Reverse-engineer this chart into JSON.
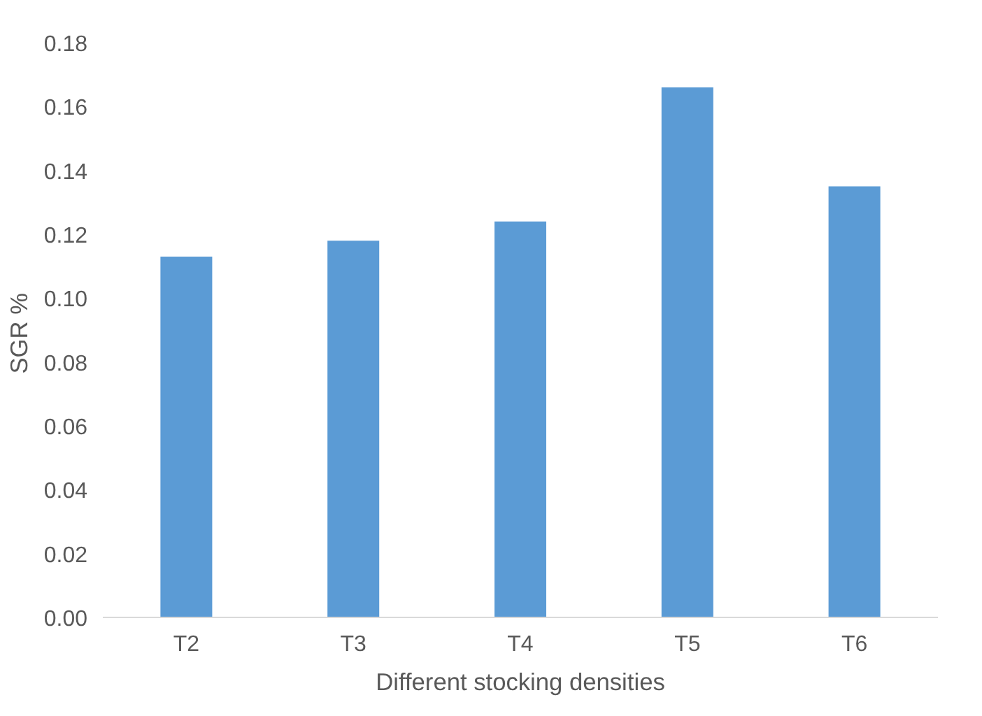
{
  "chart_data": {
    "type": "bar",
    "xlabel": "Different stocking densities",
    "ylabel": "SGR  %",
    "categories": [
      "T2",
      "T3",
      "T4",
      "T5",
      "T6"
    ],
    "values": [
      0.113,
      0.118,
      0.124,
      0.166,
      0.135
    ],
    "color": "#5b9bd5",
    "ylim": [
      0,
      0.18
    ],
    "yticks": [
      {
        "value": 0,
        "label": "0.00"
      },
      {
        "value": 0.02,
        "label": "0.02"
      },
      {
        "value": 0.04,
        "label": "0.04"
      },
      {
        "value": 0.06,
        "label": "0.06"
      },
      {
        "value": 0.08,
        "label": "0.08"
      },
      {
        "value": 0.1,
        "label": "0.10"
      },
      {
        "value": 0.12,
        "label": "0.12"
      },
      {
        "value": 0.14,
        "label": "0.14"
      },
      {
        "value": 0.16,
        "label": "0.16"
      },
      {
        "value": 0.18,
        "label": "0.18"
      }
    ],
    "grid": false
  }
}
